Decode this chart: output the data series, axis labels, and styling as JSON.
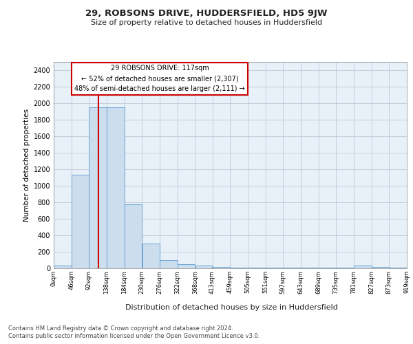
{
  "title1": "29, ROBSONS DRIVE, HUDDERSFIELD, HD5 9JW",
  "title2": "Size of property relative to detached houses in Huddersfield",
  "xlabel": "Distribution of detached houses by size in Huddersfield",
  "ylabel": "Number of detached properties",
  "footnote1": "Contains HM Land Registry data © Crown copyright and database right 2024.",
  "footnote2": "Contains public sector information licensed under the Open Government Licence v3.0.",
  "annotation_line1": "29 ROBSONS DRIVE: 117sqm",
  "annotation_line2": "← 52% of detached houses are smaller (2,307)",
  "annotation_line3": "48% of semi-detached houses are larger (2,111) →",
  "bar_color": "#ccdded",
  "bar_edge_color": "#5b9bd5",
  "vline_color": "#cc0000",
  "vline_x": 117,
  "bin_edges": [
    0,
    46,
    92,
    138,
    184,
    230,
    276,
    322,
    368,
    413,
    459,
    505,
    551,
    597,
    643,
    689,
    735,
    781,
    827,
    873,
    919
  ],
  "bin_labels": [
    "0sqm",
    "46sqm",
    "92sqm",
    "138sqm",
    "184sqm",
    "230sqm",
    "276sqm",
    "322sqm",
    "368sqm",
    "413sqm",
    "459sqm",
    "505sqm",
    "551sqm",
    "597sqm",
    "643sqm",
    "689sqm",
    "735sqm",
    "781sqm",
    "827sqm",
    "873sqm",
    "919sqm"
  ],
  "bar_heights": [
    30,
    1130,
    1950,
    1950,
    775,
    300,
    100,
    50,
    30,
    20,
    10,
    5,
    5,
    5,
    5,
    5,
    5,
    30,
    20,
    10
  ],
  "ylim": [
    0,
    2500
  ],
  "yticks": [
    0,
    200,
    400,
    600,
    800,
    1000,
    1200,
    1400,
    1600,
    1800,
    2000,
    2200,
    2400
  ],
  "background_color": "#ffffff",
  "plot_bg_color": "#e8f0f8",
  "grid_color": "#c0c8d8"
}
